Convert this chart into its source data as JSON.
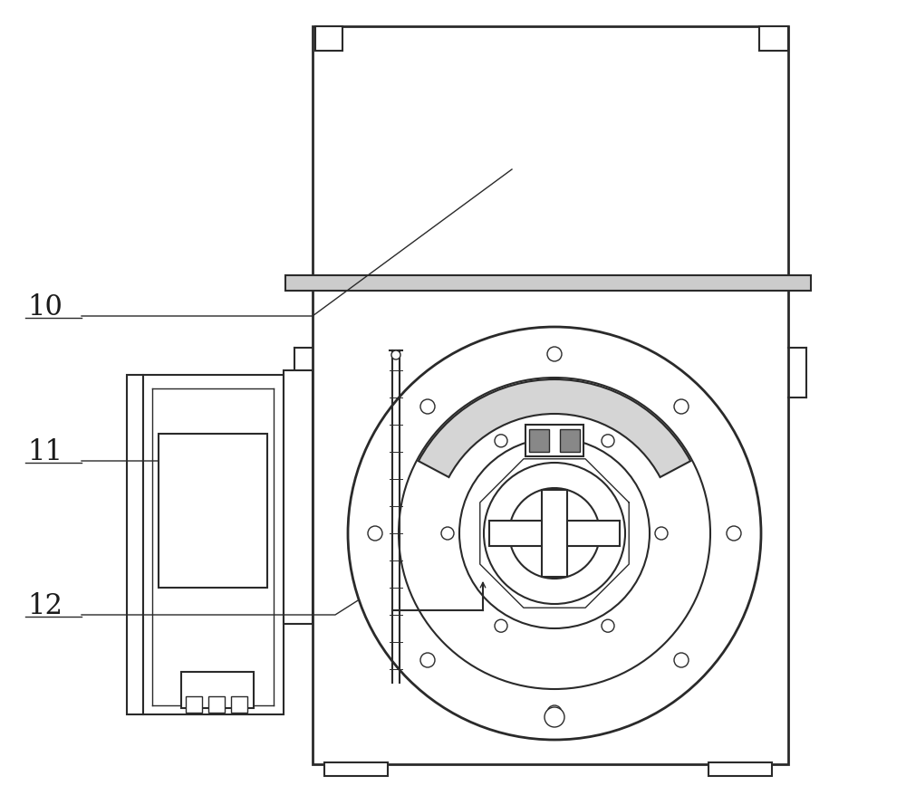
{
  "bg_color": "#ffffff",
  "line_color": "#2a2a2a",
  "label_color": "#1a1a1a",
  "label_fontsize": 22,
  "figsize": [
    10.0,
    8.79
  ],
  "dpi": 100
}
